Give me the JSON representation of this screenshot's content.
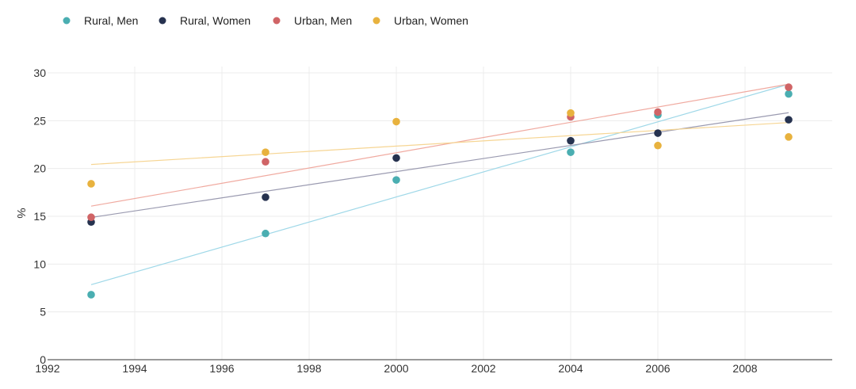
{
  "chart_data": {
    "type": "scatter",
    "title": "",
    "xlabel": "",
    "ylabel": "%",
    "xlim": [
      1992,
      2010
    ],
    "ylim": [
      0,
      30
    ],
    "x_ticks": [
      1992,
      1994,
      1996,
      1998,
      2000,
      2002,
      2004,
      2006,
      2008
    ],
    "y_ticks": [
      0,
      5,
      10,
      15,
      20,
      25,
      30
    ],
    "legend_position": "top-left",
    "grid": true,
    "trendlines": true,
    "series": [
      {
        "name": "Rural, Men",
        "color": "#4aaeb1",
        "trend_color": "#9fd8e8",
        "x": [
          1993,
          1997,
          2000,
          2004,
          2006,
          2009
        ],
        "y": [
          6.8,
          13.2,
          18.8,
          21.7,
          25.6,
          27.8
        ]
      },
      {
        "name": "Rural, Women",
        "color": "#26324f",
        "trend_color": "#9a9ab0",
        "x": [
          1993,
          1997,
          2000,
          2004,
          2006,
          2009
        ],
        "y": [
          14.4,
          17.0,
          21.1,
          22.9,
          23.7,
          25.1
        ]
      },
      {
        "name": "Urban, Men",
        "color": "#d06466",
        "trend_color": "#f0aaa0",
        "x": [
          1993,
          1997,
          2004,
          2006,
          2009
        ],
        "y": [
          14.9,
          20.7,
          25.4,
          25.9,
          28.5
        ]
      },
      {
        "name": "Urban, Women",
        "color": "#e8b23e",
        "trend_color": "#f6d593",
        "x": [
          1993,
          1997,
          2000,
          2004,
          2006,
          2009
        ],
        "y": [
          18.4,
          21.7,
          24.9,
          25.8,
          22.4,
          23.3
        ]
      }
    ]
  }
}
